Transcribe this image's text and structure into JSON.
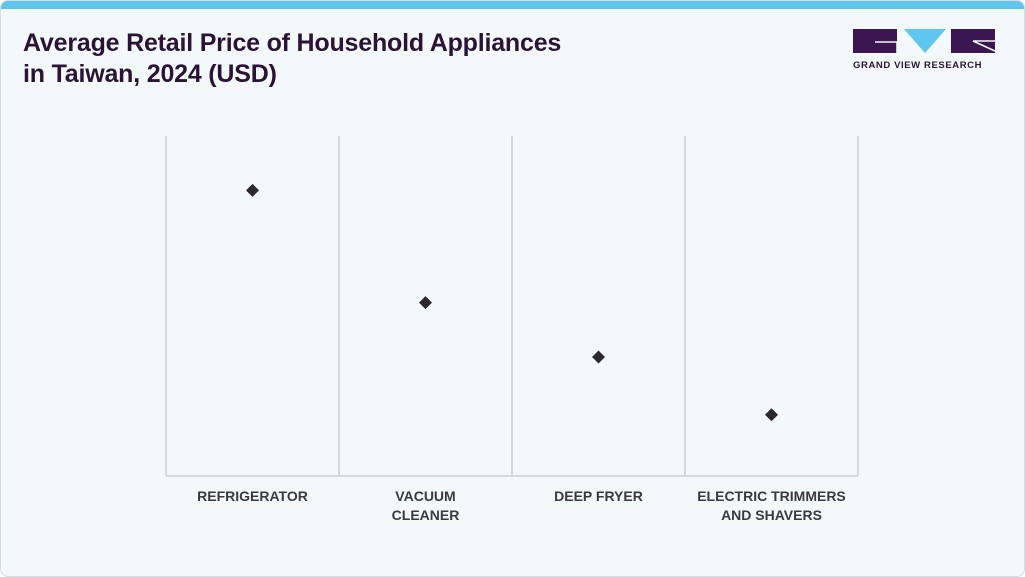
{
  "title_lines": [
    "Average Retail Price of Household Appliances",
    "in Taiwan, 2024 (USD)"
  ],
  "logo": {
    "text": "GRAND VIEW RESEARCH",
    "colors": {
      "dark": "#3b1650",
      "light": "#5ec6ef"
    }
  },
  "colors": {
    "accent": "#5ec6ef",
    "title": "#2b1338",
    "marker": "#2d2730",
    "grid": "#c9cfd3"
  },
  "chart_data": {
    "type": "scatter",
    "title": "Average Retail Price of Household Appliances in Taiwan, 2024 (USD)",
    "xlabel": "",
    "ylabel": "",
    "grid": true,
    "categories": [
      [
        "REFRIGERATOR"
      ],
      [
        "VACUUM",
        "CLEANER"
      ],
      [
        "DEEP FRYER"
      ],
      [
        "ELECTRIC TRIMMERS",
        "AND SHAVERS"
      ]
    ],
    "values": [
      0.84,
      0.51,
      0.35,
      0.18
    ],
    "value_scale": "relative (no axis values shown)",
    "ylim": [
      0,
      1
    ]
  }
}
